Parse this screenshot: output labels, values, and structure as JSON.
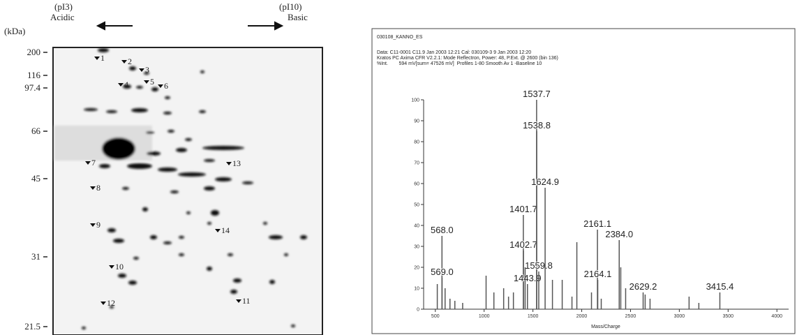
{
  "gel": {
    "acidic_pi": "(pI3)",
    "acidic": "Acidic",
    "basic_pi": "(pI10)",
    "basic": "Basic",
    "unit": "(kDa)",
    "markers": [
      "200",
      "116",
      "97.4",
      "66",
      "45",
      "31",
      "21.5"
    ],
    "spots": [
      "1",
      "2",
      "3",
      "4",
      "5",
      "6",
      "7",
      "8",
      "9",
      "10",
      "11",
      "12",
      "13",
      "14"
    ]
  },
  "chart_data": {
    "type": "spectrum",
    "title": "030108_KANNO_ES",
    "subtitle_lines": [
      "Data: C11-0001 C11.9 Jan 2003 12:21 Cal: 030109-3 9 Jan 2003 12:20",
      "Kratos PC Axima CFR V2.2.1: Mode Reflectron, Power: 48, P.Ext. @ 2600 (bin 136)",
      "%Int.        594 mV[sum= 47526 mV]  Profiles 1-80 Smooth Av 1 -Baseline 10"
    ],
    "x_label": "Mass/Charge",
    "color": "#555555",
    "x": [
      568.0,
      569.0,
      1401.7,
      1402.7,
      1443.9,
      1537.7,
      1538.8,
      1559.8,
      1624.9,
      2161.1,
      2164.1,
      2384.0,
      2629.2,
      3415.4,
      520,
      600,
      650,
      700,
      780,
      1020,
      1100,
      1200,
      1250,
      1300,
      1420,
      1700,
      1800,
      1900,
      1950,
      2100,
      2200,
      2400,
      2450,
      2650,
      2700,
      3100,
      3200
    ],
    "values": [
      35,
      15,
      45,
      28,
      12,
      100,
      85,
      18,
      58,
      38,
      14,
      33,
      8,
      8,
      12,
      10,
      5,
      4,
      3,
      16,
      8,
      10,
      6,
      8,
      20,
      14,
      14,
      6,
      32,
      8,
      5,
      20,
      10,
      7,
      5,
      6,
      3
    ],
    "peak_labels": [
      "568.0",
      "569.0",
      "1401.7",
      "1402.7",
      "1443.9",
      "1537.7",
      "1538.8",
      "1559.8",
      "1624.9",
      "2161.1",
      "2164.1",
      "2384.0",
      "2629.2",
      "3415.4",
      null,
      null,
      null,
      null,
      null,
      null,
      null,
      null,
      null,
      null,
      null,
      null,
      null,
      null,
      null,
      null,
      null,
      null,
      null,
      null,
      null,
      null,
      null
    ],
    "xlim": [
      380,
      4120
    ],
    "ylim": [
      0,
      100
    ],
    "xticks": [
      500,
      1000,
      1500,
      2000,
      2500,
      3000,
      3500,
      4000
    ],
    "yticks": [
      0,
      10,
      20,
      30,
      40,
      50,
      60,
      70,
      80,
      90,
      100
    ]
  }
}
